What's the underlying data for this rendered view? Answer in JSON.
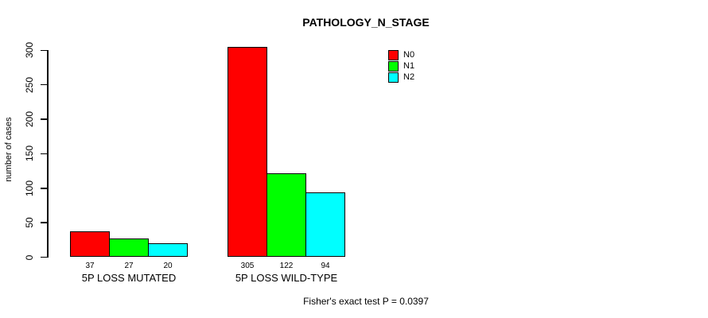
{
  "title": "PATHOLOGY_N_STAGE",
  "y_axis": {
    "label": "number of cases"
  },
  "footer": "Fisher's exact test P = 0.0397",
  "legend": {
    "items": [
      {
        "label": "N0",
        "color": "#FF0000"
      },
      {
        "label": "N1",
        "color": "#00FF00"
      },
      {
        "label": "N2",
        "color": "#00FFFF"
      }
    ]
  },
  "chart_data": {
    "type": "bar",
    "title": "PATHOLOGY_N_STAGE",
    "xlabel": "",
    "ylabel": "number of cases",
    "ylim": [
      0,
      300
    ],
    "yticks": [
      0,
      50,
      100,
      150,
      200,
      250,
      300
    ],
    "grid": false,
    "legend_position": "top-right-inside",
    "grouped": true,
    "categories": [
      "5P LOSS MUTATED",
      "5P LOSS WILD-TYPE"
    ],
    "series": [
      {
        "name": "N0",
        "color": "#FF0000",
        "values": [
          37,
          305
        ]
      },
      {
        "name": "N1",
        "color": "#00FF00",
        "values": [
          27,
          122
        ]
      },
      {
        "name": "N2",
        "color": "#00FFFF",
        "values": [
          20,
          94
        ]
      }
    ],
    "bar_value_labels": [
      [
        37,
        27,
        20
      ],
      [
        305,
        122,
        94
      ]
    ],
    "annotation": "Fisher's exact test P = 0.0397"
  }
}
